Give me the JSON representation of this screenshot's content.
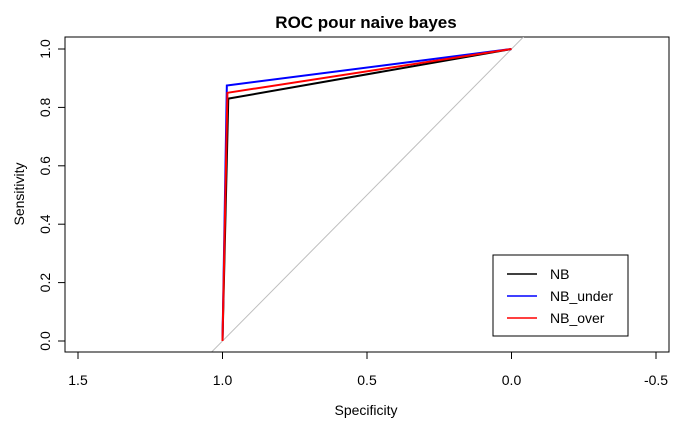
{
  "chart_data": {
    "type": "line",
    "title": "ROC pour naive bayes",
    "xlabel": "Specificity",
    "ylabel": "Sensitivity",
    "xlim": [
      1.5,
      -0.5
    ],
    "ylim": [
      0.0,
      1.0
    ],
    "x_reversed": true,
    "x_ticks": [
      1.5,
      1.0,
      0.5,
      0.0,
      -0.5
    ],
    "x_tick_labels": [
      "1.5",
      "1.0",
      "0.5",
      "0.0",
      "-0.5"
    ],
    "y_ticks": [
      0.0,
      0.2,
      0.4,
      0.6,
      0.8,
      1.0
    ],
    "y_tick_labels": [
      "0.0",
      "0.2",
      "0.4",
      "0.6",
      "0.8",
      "1.0"
    ],
    "grid": false,
    "legend_position": "bottom-right",
    "diagonal_color": "#bebebe",
    "series": [
      {
        "name": "NB",
        "color": "#000000",
        "x": [
          1.0,
          0.98,
          0.0
        ],
        "y": [
          0.0,
          0.83,
          1.0
        ]
      },
      {
        "name": "NB_under",
        "color": "#0000ff",
        "x": [
          1.0,
          0.985,
          0.0
        ],
        "y": [
          0.0,
          0.875,
          1.0
        ]
      },
      {
        "name": "NB_over",
        "color": "#ff0000",
        "x": [
          1.0,
          0.983,
          0.0
        ],
        "y": [
          0.0,
          0.85,
          1.0
        ]
      }
    ]
  }
}
